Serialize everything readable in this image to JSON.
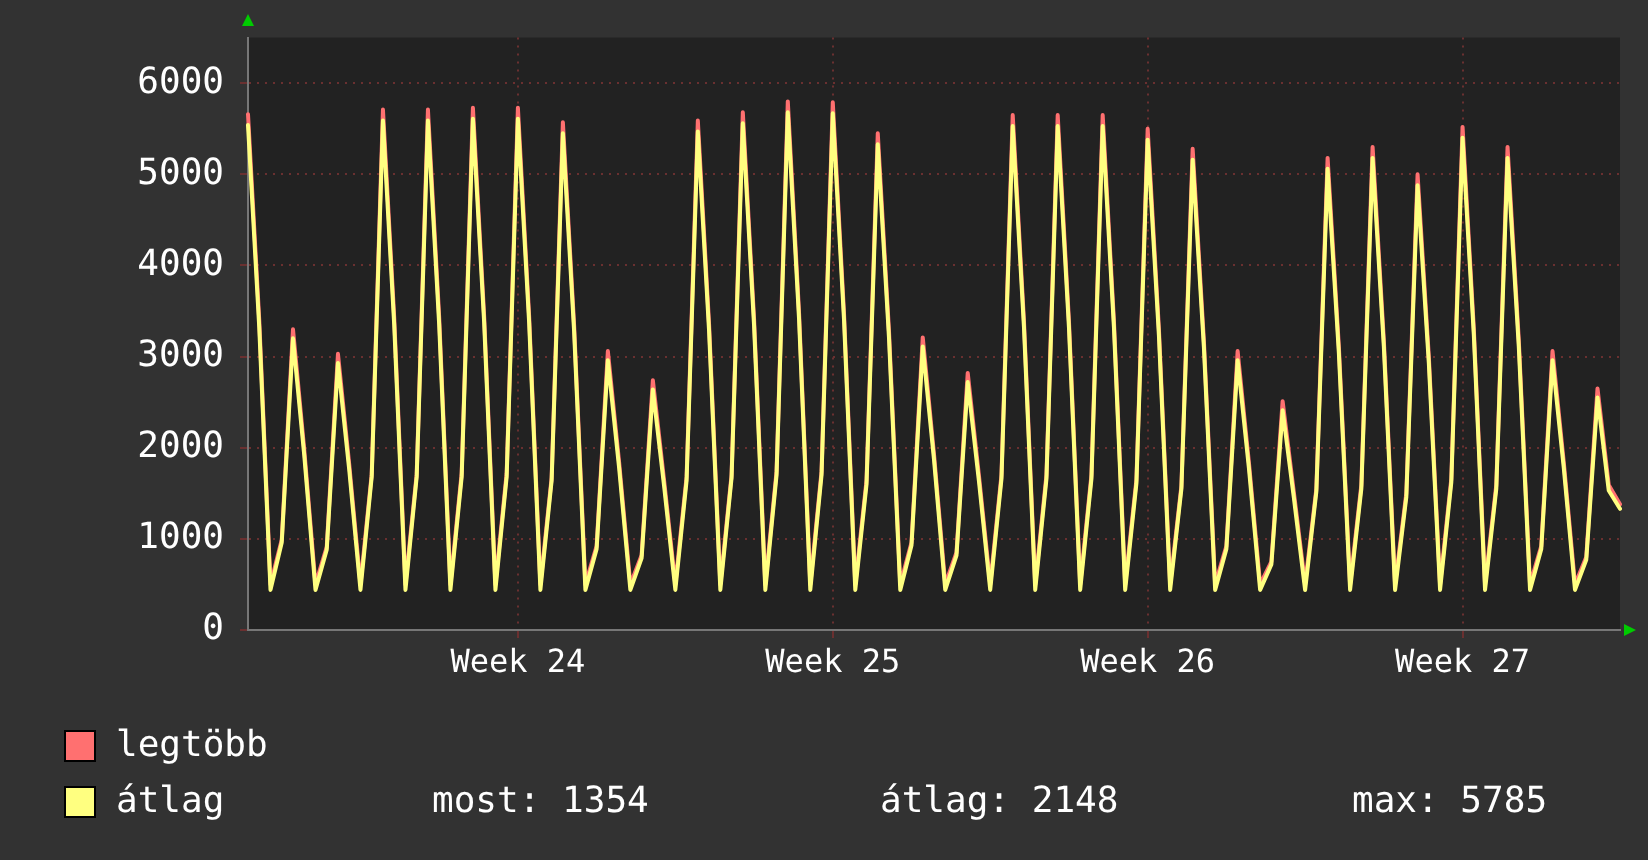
{
  "chart_data": {
    "type": "line",
    "marker": "none",
    "line_style": "solid",
    "grid": true,
    "legend": "bottom left",
    "categories": [
      null,
      null,
      null,
      null,
      null,
      null,
      null,
      null,
      null,
      null,
      null,
      null,
      null,
      null,
      null,
      null,
      null,
      null,
      null,
      null,
      null,
      null,
      null,
      null,
      "Week 24",
      null,
      null,
      null,
      null,
      null,
      null,
      null,
      null,
      null,
      null,
      null,
      null,
      null,
      null,
      null,
      null,
      null,
      null,
      null,
      null,
      null,
      null,
      null,
      null,
      null,
      null,
      null,
      "Week 25",
      null,
      null,
      null,
      null,
      null,
      null,
      null,
      null,
      null,
      null,
      null,
      null,
      null,
      null,
      null,
      null,
      null,
      null,
      null,
      null,
      null,
      null,
      null,
      null,
      null,
      null,
      null,
      "Week 26",
      null,
      null,
      null,
      null,
      null,
      null,
      null,
      null,
      null,
      null,
      null,
      null,
      null,
      null,
      null,
      null,
      null,
      null,
      null,
      null,
      null,
      null,
      null,
      null,
      null,
      null,
      null,
      "Week 27",
      null,
      null,
      null,
      null,
      null,
      null,
      null,
      null,
      null,
      null,
      null,
      null,
      null,
      null
    ],
    "ylim": [
      0,
      6500
    ],
    "yticks": [
      0,
      1000,
      2000,
      3000,
      4000,
      5000,
      6000
    ],
    "annotations": [
      "most: 1354",
      "átlag: 2148",
      "max: 5785"
    ],
    "series": [
      {
        "name": "legtöbb",
        "color": "#ff7070",
        "values": [
          5660,
          3400,
          500,
          990,
          3300,
          1980,
          500,
          910,
          3030,
          1820,
          500,
          1710,
          5710,
          3430,
          500,
          1710,
          5710,
          3430,
          500,
          1720,
          5730,
          3440,
          500,
          1720,
          5730,
          3440,
          500,
          1670,
          5570,
          3340,
          500,
          920,
          3060,
          1840,
          500,
          820,
          2740,
          1640,
          500,
          1680,
          5590,
          3350,
          500,
          1700,
          5680,
          3410,
          500,
          1740,
          5800,
          3480,
          500,
          1740,
          5790,
          3470,
          500,
          1640,
          5450,
          3270,
          500,
          960,
          3210,
          1930,
          500,
          850,
          2820,
          1690,
          500,
          1700,
          5650,
          3390,
          500,
          1700,
          5650,
          3390,
          500,
          1700,
          5650,
          3390,
          500,
          1650,
          5500,
          3300,
          500,
          1580,
          5280,
          3170,
          500,
          920,
          3060,
          1840,
          500,
          750,
          2510,
          1510,
          500,
          1550,
          5180,
          3110,
          500,
          1590,
          5300,
          3180,
          500,
          1500,
          5000,
          3000,
          500,
          1660,
          5520,
          3310,
          500,
          1590,
          5300,
          3180,
          500,
          920,
          3060,
          1840,
          500,
          800,
          2650,
          1590,
          1380
        ]
      },
      {
        "name": "átlag",
        "color": "#ffff80",
        "values": [
          5540,
          3320,
          440,
          960,
          3200,
          1920,
          440,
          880,
          2930,
          1760,
          440,
          1680,
          5590,
          3350,
          440,
          1680,
          5590,
          3350,
          440,
          1680,
          5610,
          3370,
          440,
          1680,
          5610,
          3370,
          440,
          1640,
          5450,
          3270,
          440,
          890,
          2960,
          1780,
          440,
          790,
          2640,
          1580,
          440,
          1640,
          5470,
          3280,
          440,
          1670,
          5560,
          3340,
          440,
          1700,
          5680,
          3410,
          440,
          1700,
          5670,
          3400,
          440,
          1600,
          5330,
          3200,
          440,
          930,
          3110,
          1870,
          440,
          820,
          2720,
          1630,
          440,
          1660,
          5530,
          3320,
          440,
          1660,
          5530,
          3320,
          440,
          1660,
          5530,
          3320,
          440,
          1610,
          5380,
          3230,
          440,
          1550,
          5160,
          3100,
          440,
          890,
          2960,
          1780,
          440,
          720,
          2410,
          1450,
          440,
          1520,
          5060,
          3040,
          440,
          1550,
          5180,
          3110,
          440,
          1460,
          4880,
          2930,
          440,
          1620,
          5400,
          3240,
          440,
          1550,
          5180,
          3110,
          440,
          890,
          2960,
          1780,
          440,
          770,
          2550,
          1530,
          1330
        ]
      }
    ]
  }
}
